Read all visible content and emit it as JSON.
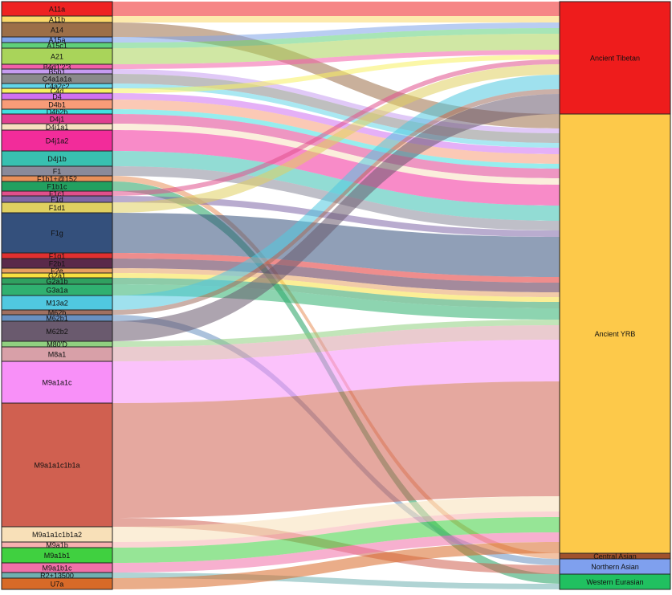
{
  "chart_data": {
    "type": "sankey",
    "nodes": [
      {
        "name": "A11a",
        "color": "#ee2222"
      },
      {
        "name": "A11b",
        "color": "#fbd86a"
      },
      {
        "name": "A14",
        "color": "#9c6f48"
      },
      {
        "name": "A15a",
        "color": "#7fa4e8"
      },
      {
        "name": "A15c1",
        "color": "#5fd07a"
      },
      {
        "name": "A21",
        "color": "#a9d45a"
      },
      {
        "name": "B4d1'2'3",
        "color": "#f25fa8"
      },
      {
        "name": "B5b1",
        "color": "#c69cf0"
      },
      {
        "name": "C4a1a1a",
        "color": "#8a8a8a"
      },
      {
        "name": "C4a2c2",
        "color": "#62d6e8"
      },
      {
        "name": "C4d",
        "color": "#f8f060"
      },
      {
        "name": "D4",
        "color": "#d070f0"
      },
      {
        "name": "D4b1",
        "color": "#f89c78"
      },
      {
        "name": "D4b2b",
        "color": "#40e0e0"
      },
      {
        "name": "D4j1",
        "color": "#e04090"
      },
      {
        "name": "D4j1a1",
        "color": "#f8e0c0"
      },
      {
        "name": "D4j1a2",
        "color": "#f22c9a"
      },
      {
        "name": "D4j1b",
        "color": "#38c0b0"
      },
      {
        "name": "F1",
        "color": "#8a8a9a"
      },
      {
        "name": "F1b1+@152",
        "color": "#e8905a"
      },
      {
        "name": "F1b1c",
        "color": "#22a060"
      },
      {
        "name": "F1c1",
        "color": "#e0508c"
      },
      {
        "name": "F1d",
        "color": "#8068a8"
      },
      {
        "name": "F1d1",
        "color": "#e0d060"
      },
      {
        "name": "F1g",
        "color": "#34507c"
      },
      {
        "name": "F1g1",
        "color": "#e03030"
      },
      {
        "name": "F2b1",
        "color": "#5a2a4a"
      },
      {
        "name": "F2e",
        "color": "#e8a060"
      },
      {
        "name": "G2a1",
        "color": "#f8e040"
      },
      {
        "name": "G2a1b",
        "color": "#30a060"
      },
      {
        "name": "G3a1a",
        "color": "#30b070"
      },
      {
        "name": "M13a2",
        "color": "#50c8e0"
      },
      {
        "name": "M62b",
        "color": "#a07060"
      },
      {
        "name": "M62b1",
        "color": "#6890c0"
      },
      {
        "name": "M62b2",
        "color": "#6a5a6e"
      },
      {
        "name": "M80'D",
        "color": "#90d080"
      },
      {
        "name": "M8a1",
        "color": "#d8a0a8"
      },
      {
        "name": "M9a1a1c",
        "color": "#f890f8"
      },
      {
        "name": "M9a1a1c1b1a",
        "color": "#d06050"
      },
      {
        "name": "M9a1a1c1b1a2",
        "color": "#f8e0b8"
      },
      {
        "name": "M9a1b",
        "color": "#f8b0b0"
      },
      {
        "name": "M9a1b1",
        "color": "#40d040"
      },
      {
        "name": "M9a1b1c",
        "color": "#f070a8"
      },
      {
        "name": "R2+13500",
        "color": "#70b0b0"
      },
      {
        "name": "U7a",
        "color": "#d86a28"
      },
      {
        "name": "Ancient Tibetan",
        "color": "#ee1c1c"
      },
      {
        "name": "Ancient YRB",
        "color": "#fdc94a"
      },
      {
        "name": "Central Asian",
        "color": "#a0522d"
      },
      {
        "name": "Northern Asian",
        "color": "#7fa0ee"
      },
      {
        "name": "Western Eurasian",
        "color": "#20c060"
      }
    ],
    "flows": [
      {
        "source": 0,
        "target": 45,
        "value": 18
      },
      {
        "source": 1,
        "target": 45,
        "value": 8
      },
      {
        "source": 2,
        "target": 46,
        "value": 18
      },
      {
        "source": 3,
        "target": 45,
        "value": 7
      },
      {
        "source": 4,
        "target": 45,
        "value": 7
      },
      {
        "source": 5,
        "target": 45,
        "value": 20
      },
      {
        "source": 6,
        "target": 45,
        "value": 6
      },
      {
        "source": 7,
        "target": 46,
        "value": 6
      },
      {
        "source": 8,
        "target": 46,
        "value": 12
      },
      {
        "source": 9,
        "target": 46,
        "value": 6
      },
      {
        "source": 10,
        "target": 45,
        "value": 6
      },
      {
        "source": 11,
        "target": 46,
        "value": 8
      },
      {
        "source": 12,
        "target": 46,
        "value": 12
      },
      {
        "source": 13,
        "target": 46,
        "value": 6
      },
      {
        "source": 14,
        "target": 46,
        "value": 12
      },
      {
        "source": 15,
        "target": 46,
        "value": 8
      },
      {
        "source": 16,
        "target": 46,
        "value": 26
      },
      {
        "source": 17,
        "target": 46,
        "value": 19
      },
      {
        "source": 18,
        "target": 46,
        "value": 12
      },
      {
        "source": 19,
        "target": 47,
        "value": 7
      },
      {
        "source": 20,
        "target": 49,
        "value": 12
      },
      {
        "source": 21,
        "target": 45,
        "value": 6
      },
      {
        "source": 22,
        "target": 46,
        "value": 8
      },
      {
        "source": 23,
        "target": 45,
        "value": 13
      },
      {
        "source": 24,
        "target": 46,
        "value": 50
      },
      {
        "source": 25,
        "target": 46,
        "value": 7
      },
      {
        "source": 26,
        "target": 46,
        "value": 12
      },
      {
        "source": 27,
        "target": 46,
        "value": 6
      },
      {
        "source": 28,
        "target": 46,
        "value": 6
      },
      {
        "source": 29,
        "target": 46,
        "value": 8
      },
      {
        "source": 30,
        "target": 46,
        "value": 14
      },
      {
        "source": 31,
        "target": 45,
        "value": 18
      },
      {
        "source": 32,
        "target": 45,
        "value": 6
      },
      {
        "source": 33,
        "target": 48,
        "value": 8
      },
      {
        "source": 34,
        "target": 45,
        "value": 25
      },
      {
        "source": 35,
        "target": 46,
        "value": 7
      },
      {
        "source": 36,
        "target": 46,
        "value": 18
      },
      {
        "source": 37,
        "target": 46,
        "value": 52
      },
      {
        "source": 38,
        "target": 46,
        "value": 143
      },
      {
        "source": 38,
        "target": 48,
        "value": 11
      },
      {
        "source": 39,
        "target": 46,
        "value": 19
      },
      {
        "source": 40,
        "target": 46,
        "value": 7
      },
      {
        "source": 41,
        "target": 46,
        "value": 19
      },
      {
        "source": 42,
        "target": 46,
        "value": 12
      },
      {
        "source": 43,
        "target": 49,
        "value": 7
      },
      {
        "source": 44,
        "target": 46,
        "value": 14
      }
    ]
  }
}
